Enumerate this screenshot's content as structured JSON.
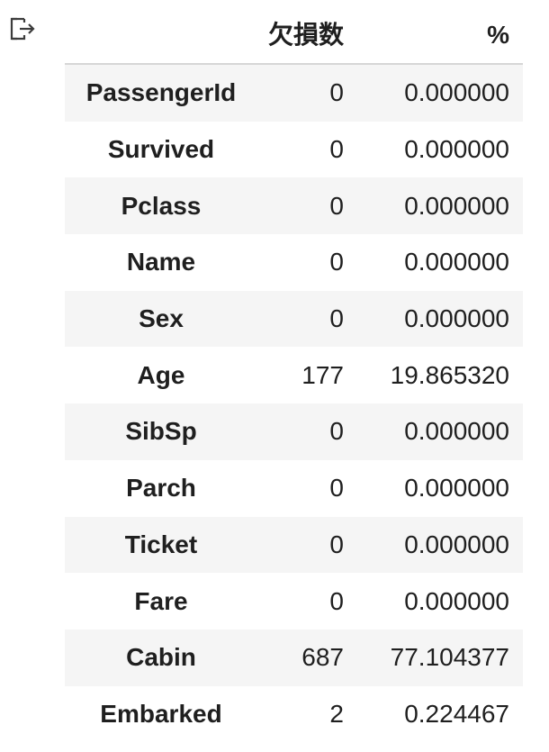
{
  "output": {
    "icon": "output-arrow-icon"
  },
  "table": {
    "columns": [
      "",
      "欠損数",
      "%"
    ],
    "rows": [
      {
        "index": "PassengerId",
        "count": "0",
        "percent": "0.000000"
      },
      {
        "index": "Survived",
        "count": "0",
        "percent": "0.000000"
      },
      {
        "index": "Pclass",
        "count": "0",
        "percent": "0.000000"
      },
      {
        "index": "Name",
        "count": "0",
        "percent": "0.000000"
      },
      {
        "index": "Sex",
        "count": "0",
        "percent": "0.000000"
      },
      {
        "index": "Age",
        "count": "177",
        "percent": "19.865320"
      },
      {
        "index": "SibSp",
        "count": "0",
        "percent": "0.000000"
      },
      {
        "index": "Parch",
        "count": "0",
        "percent": "0.000000"
      },
      {
        "index": "Ticket",
        "count": "0",
        "percent": "0.000000"
      },
      {
        "index": "Fare",
        "count": "0",
        "percent": "0.000000"
      },
      {
        "index": "Cabin",
        "count": "687",
        "percent": "77.104377"
      },
      {
        "index": "Embarked",
        "count": "2",
        "percent": "0.224467"
      }
    ]
  },
  "colors": {
    "row_stripe": "#f5f5f5",
    "header_rule": "#d6d6d6",
    "text": "#1f1f1f"
  }
}
